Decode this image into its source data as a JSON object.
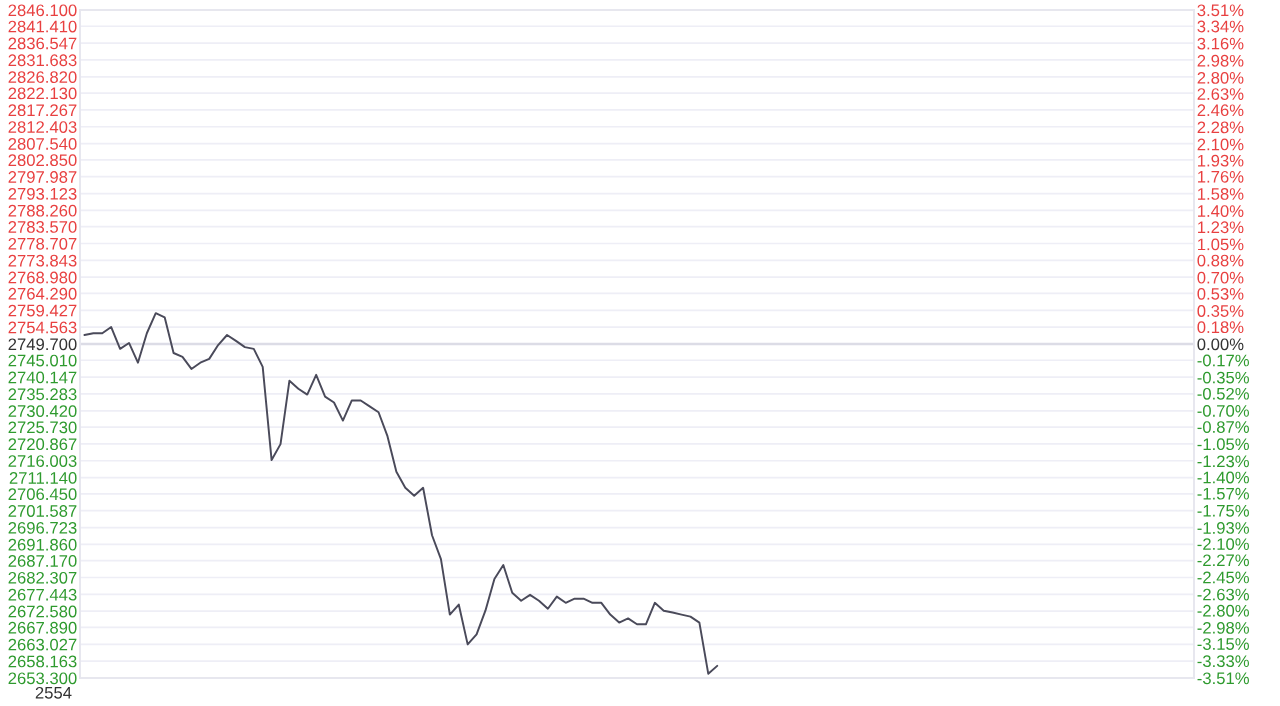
{
  "chart_data": {
    "type": "line",
    "categories": [
      null,
      null,
      null,
      null,
      null,
      null,
      null,
      null,
      null,
      null,
      null,
      null,
      null,
      null,
      null,
      null,
      null,
      null,
      null,
      null,
      null,
      null,
      null,
      null,
      null,
      null,
      null,
      null,
      null,
      null,
      null,
      null,
      null,
      null,
      null,
      null,
      null,
      null,
      null,
      null,
      null,
      null,
      null,
      null,
      null,
      null,
      null,
      null,
      null,
      null,
      null,
      null,
      null,
      null,
      null,
      null,
      null,
      null,
      null,
      null,
      null,
      null,
      null,
      null,
      null,
      null,
      null,
      null,
      null,
      null,
      null,
      null,
      null,
      null,
      null,
      null,
      null,
      null,
      null,
      null,
      null,
      null,
      null,
      null,
      null,
      null,
      null,
      null,
      null,
      null,
      null,
      null,
      null,
      null,
      null,
      null,
      null,
      null,
      null,
      null,
      null,
      null,
      null,
      null,
      null,
      null,
      null,
      null,
      null,
      null,
      null,
      null,
      null,
      null,
      null,
      null,
      null,
      null,
      null,
      null,
      null,
      null,
      null,
      null,
      null
    ],
    "series": [
      {
        "color": "#4a4a5a",
        "values": [
          2752.3,
          2752.8,
          2752.8,
          2754.6,
          2748.3,
          2750.0,
          2744.3,
          2752.8,
          2758.6,
          2757.4,
          2747.1,
          2746.0,
          2742.5,
          2744.3,
          2745.4,
          2749.4,
          2752.3,
          2750.6,
          2748.8,
          2748.3,
          2743.1,
          2716.2,
          2720.8,
          2739.1,
          2736.8,
          2735.1,
          2740.8,
          2734.5,
          2732.8,
          2727.6,
          2733.4,
          2733.4,
          2731.7,
          2730.0,
          2723.1,
          2712.8,
          2708.2,
          2705.9,
          2708.2,
          2694.5,
          2687.6,
          2671.6,
          2674.5,
          2663.0,
          2665.9,
          2672.8,
          2681.9,
          2685.9,
          2677.9,
          2675.6,
          2677.3,
          2675.6,
          2673.3,
          2676.8,
          2675.0,
          2676.2,
          2676.2,
          2675.0,
          2675.0,
          2671.6,
          2669.3,
          2670.5,
          2668.8,
          2668.8,
          2675.0,
          2672.7,
          2672.2,
          2671.6,
          2671.0,
          2669.3,
          2654.5,
          2656.8,
          null,
          null,
          null,
          null,
          null,
          null,
          null,
          null,
          null,
          null,
          null,
          null,
          null,
          null,
          null,
          null,
          null,
          null,
          null,
          null,
          null,
          null,
          null,
          null,
          null,
          null,
          null,
          null,
          null,
          null,
          null,
          null,
          null,
          null,
          null,
          null,
          null,
          null,
          null,
          null,
          null,
          null,
          null,
          null,
          null,
          null,
          null,
          null,
          null,
          null,
          null,
          null,
          null
        ]
      }
    ],
    "ylim": [
      2653.3,
      2846.1
    ],
    "yticks": [
      {
        "value": 2846.1,
        "label": "2846.100"
      },
      {
        "value": 2841.41,
        "label": "2841.410"
      },
      {
        "value": 2836.547,
        "label": "2836.547"
      },
      {
        "value": 2831.683,
        "label": "2831.683"
      },
      {
        "value": 2826.82,
        "label": "2826.820"
      },
      {
        "value": 2822.13,
        "label": "2822.130"
      },
      {
        "value": 2817.267,
        "label": "2817.267"
      },
      {
        "value": 2812.403,
        "label": "2812.403"
      },
      {
        "value": 2807.54,
        "label": "2807.540"
      },
      {
        "value": 2802.85,
        "label": "2802.850"
      },
      {
        "value": 2797.987,
        "label": "2797.987"
      },
      {
        "value": 2793.123,
        "label": "2793.123"
      },
      {
        "value": 2788.26,
        "label": "2788.260"
      },
      {
        "value": 2783.57,
        "label": "2783.570"
      },
      {
        "value": 2778.707,
        "label": "2778.707"
      },
      {
        "value": 2773.843,
        "label": "2773.843"
      },
      {
        "value": 2768.98,
        "label": "2768.980"
      },
      {
        "value": 2764.29,
        "label": "2764.290"
      },
      {
        "value": 2759.427,
        "label": "2759.427"
      },
      {
        "value": 2754.563,
        "label": "2754.563"
      },
      {
        "value": 2749.7,
        "label": "2749.700"
      },
      {
        "value": 2745.01,
        "label": "2745.010"
      },
      {
        "value": 2740.147,
        "label": "2740.147"
      },
      {
        "value": 2735.283,
        "label": "2735.283"
      },
      {
        "value": 2730.42,
        "label": "2730.420"
      },
      {
        "value": 2725.73,
        "label": "2725.730"
      },
      {
        "value": 2720.867,
        "label": "2720.867"
      },
      {
        "value": 2716.003,
        "label": "2716.003"
      },
      {
        "value": 2711.14,
        "label": "2711.140"
      },
      {
        "value": 2706.45,
        "label": "2706.450"
      },
      {
        "value": 2701.587,
        "label": "2701.587"
      },
      {
        "value": 2696.723,
        "label": "2696.723"
      },
      {
        "value": 2691.86,
        "label": "2691.860"
      },
      {
        "value": 2687.17,
        "label": "2687.170"
      },
      {
        "value": 2682.307,
        "label": "2682.307"
      },
      {
        "value": 2677.443,
        "label": "2677.443"
      },
      {
        "value": 2672.58,
        "label": "2672.580"
      },
      {
        "value": 2667.89,
        "label": "2667.890"
      },
      {
        "value": 2663.027,
        "label": "2663.027"
      },
      {
        "value": 2658.163,
        "label": "2658.163"
      },
      {
        "value": 2653.3,
        "label": "2653.300"
      }
    ],
    "y2lim": [
      -3.51,
      3.51
    ],
    "y2ticks": [
      {
        "value": 3.51,
        "label": "3.51%"
      },
      {
        "value": 3.34,
        "label": "3.34%"
      },
      {
        "value": 3.16,
        "label": "3.16%"
      },
      {
        "value": 2.98,
        "label": "2.98%"
      },
      {
        "value": 2.8,
        "label": "2.80%"
      },
      {
        "value": 2.63,
        "label": "2.63%"
      },
      {
        "value": 2.46,
        "label": "2.46%"
      },
      {
        "value": 2.28,
        "label": "2.28%"
      },
      {
        "value": 2.1,
        "label": "2.10%"
      },
      {
        "value": 1.93,
        "label": "1.93%"
      },
      {
        "value": 1.76,
        "label": "1.76%"
      },
      {
        "value": 1.58,
        "label": "1.58%"
      },
      {
        "value": 1.4,
        "label": "1.40%"
      },
      {
        "value": 1.23,
        "label": "1.23%"
      },
      {
        "value": 1.05,
        "label": "1.05%"
      },
      {
        "value": 0.88,
        "label": "0.88%"
      },
      {
        "value": 0.7,
        "label": "0.70%"
      },
      {
        "value": 0.53,
        "label": "0.53%"
      },
      {
        "value": 0.35,
        "label": "0.35%"
      },
      {
        "value": 0.18,
        "label": "0.18%"
      },
      {
        "value": 0,
        "label": "0.00%"
      },
      {
        "value": -0.17,
        "label": "-0.17%"
      },
      {
        "value": -0.35,
        "label": "-0.35%"
      },
      {
        "value": -0.52,
        "label": "-0.52%"
      },
      {
        "value": -0.7,
        "label": "-0.70%"
      },
      {
        "value": -0.87,
        "label": "-0.87%"
      },
      {
        "value": -1.05,
        "label": "-1.05%"
      },
      {
        "value": -1.23,
        "label": "-1.23%"
      },
      {
        "value": -1.4,
        "label": "-1.40%"
      },
      {
        "value": -1.57,
        "label": "-1.57%"
      },
      {
        "value": -1.75,
        "label": "-1.75%"
      },
      {
        "value": -1.93,
        "label": "-1.93%"
      },
      {
        "value": -2.1,
        "label": "-2.10%"
      },
      {
        "value": -2.27,
        "label": "-2.27%"
      },
      {
        "value": -2.45,
        "label": "-2.45%"
      },
      {
        "value": -2.63,
        "label": "-2.63%"
      },
      {
        "value": -2.8,
        "label": "-2.80%"
      },
      {
        "value": -2.98,
        "label": "-2.98%"
      },
      {
        "value": -3.15,
        "label": "-3.15%"
      },
      {
        "value": -3.33,
        "label": "-3.33%"
      },
      {
        "value": -3.51,
        "label": "-3.51%"
      }
    ],
    "ref_lines": [
      {
        "axis": "y",
        "value": 2749.7,
        "color": "#dcdce6"
      }
    ],
    "annotations": [
      "2554"
    ],
    "grid": "y",
    "tick_labels": "y",
    "marker": "none",
    "line_style": "solid"
  }
}
